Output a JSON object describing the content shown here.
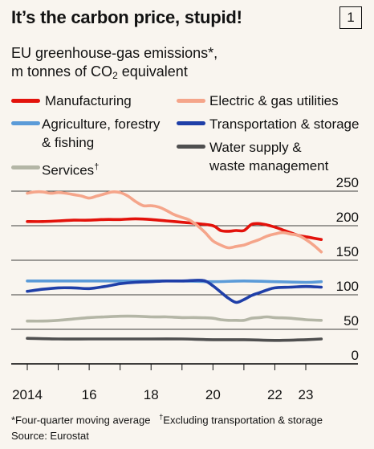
{
  "header": {
    "title": "It’s the carbon price, stupid!",
    "badge": "1",
    "subtitle_line1": "EU greenhouse-gas emissions*,",
    "subtitle_line2_pre": "m tonnes of CO",
    "subtitle_line2_sub": "2",
    "subtitle_line2_post": " equivalent"
  },
  "legend": {
    "manufacturing": "Manufacturing",
    "utilities": "Electric & gas utilities",
    "agriculture_1": "Agriculture, forestry",
    "agriculture_2": "& fishing",
    "transport": "Transportation & storage",
    "services": "Services",
    "services_mark": "†",
    "water_1": "Water supply &",
    "water_2": "waste management"
  },
  "footnotes": {
    "note1": "*Four-quarter moving average",
    "note2_mark": "†",
    "note2": "Excluding transportation & storage",
    "source": "Source: Eurostat"
  },
  "colors": {
    "manufacturing": "#e3120b",
    "utilities": "#f5a58a",
    "agriculture": "#5b9bd8",
    "transport": "#1f3fa8",
    "services": "#b4b6a6",
    "water": "#4f4f4f",
    "grid": "#000000"
  },
  "chart_data": {
    "type": "line",
    "x_ticks": [
      {
        "value": 2014,
        "label": "2014"
      },
      {
        "value": 2016,
        "label": "16"
      },
      {
        "value": 2018,
        "label": "18"
      },
      {
        "value": 2020,
        "label": "20"
      },
      {
        "value": 2022,
        "label": "22"
      },
      {
        "value": 2023,
        "label": "23"
      }
    ],
    "y_ticks": [
      0,
      50,
      100,
      150,
      200,
      250
    ],
    "xlim": [
      2013.9,
      2023.6
    ],
    "ylim": [
      0,
      250
    ],
    "grid": true,
    "series": [
      {
        "name": "Manufacturing",
        "color_key": "manufacturing",
        "x": [
          2014.0,
          2014.5,
          2015.0,
          2015.5,
          2016.0,
          2016.5,
          2017.0,
          2017.5,
          2018.0,
          2018.5,
          2019.0,
          2019.5,
          2020.0,
          2020.25,
          2020.5,
          2020.75,
          2021.0,
          2021.25,
          2021.5,
          2021.75,
          2022.0,
          2022.25,
          2022.5,
          2022.75,
          2023.0,
          2023.25,
          2023.5
        ],
        "y": [
          206,
          206,
          207,
          208,
          208,
          209,
          209,
          210,
          209,
          207,
          205,
          203,
          200,
          193,
          192,
          193,
          193,
          202,
          203,
          201,
          198,
          194,
          190,
          186,
          184,
          182,
          180
        ]
      },
      {
        "name": "Electric & gas utilities",
        "color_key": "utilities",
        "x": [
          2014.0,
          2014.25,
          2014.5,
          2014.75,
          2015.0,
          2015.25,
          2015.5,
          2015.75,
          2016.0,
          2016.25,
          2016.5,
          2016.75,
          2017.0,
          2017.25,
          2017.5,
          2017.75,
          2018.0,
          2018.25,
          2018.5,
          2018.75,
          2019.0,
          2019.25,
          2019.5,
          2019.75,
          2020.0,
          2020.25,
          2020.5,
          2020.75,
          2021.0,
          2021.25,
          2021.5,
          2021.75,
          2022.0,
          2022.25,
          2022.5,
          2022.75,
          2023.0,
          2023.25,
          2023.5
        ],
        "y": [
          247,
          249,
          249,
          247,
          248,
          247,
          245,
          243,
          240,
          243,
          246,
          249,
          248,
          243,
          235,
          229,
          229,
          227,
          222,
          216,
          212,
          208,
          200,
          190,
          178,
          172,
          168,
          170,
          172,
          176,
          180,
          185,
          188,
          190,
          188,
          186,
          180,
          172,
          162
        ]
      },
      {
        "name": "Agriculture, forestry & fishing",
        "color_key": "agriculture",
        "x": [
          2014.0,
          2015.0,
          2016.0,
          2017.0,
          2018.0,
          2019.0,
          2020.0,
          2021.0,
          2022.0,
          2023.0,
          2023.5
        ],
        "y": [
          120,
          120,
          120,
          120,
          120,
          120,
          119,
          120,
          119,
          118,
          119
        ]
      },
      {
        "name": "Transportation & storage",
        "color_key": "transport",
        "x": [
          2014.0,
          2014.5,
          2015.0,
          2015.5,
          2016.0,
          2016.5,
          2017.0,
          2017.5,
          2018.0,
          2018.5,
          2019.0,
          2019.5,
          2019.75,
          2020.0,
          2020.25,
          2020.5,
          2020.75,
          2021.0,
          2021.25,
          2021.5,
          2021.75,
          2022.0,
          2022.5,
          2023.0,
          2023.5
        ],
        "y": [
          105,
          108,
          110,
          110,
          109,
          112,
          116,
          118,
          119,
          120,
          120,
          121,
          120,
          113,
          104,
          95,
          89,
          93,
          99,
          103,
          107,
          110,
          111,
          112,
          111
        ]
      },
      {
        "name": "Services",
        "color_key": "services",
        "x": [
          2014.0,
          2014.5,
          2015.0,
          2015.5,
          2016.0,
          2016.5,
          2017.0,
          2017.5,
          2018.0,
          2018.5,
          2019.0,
          2019.5,
          2020.0,
          2020.25,
          2020.5,
          2020.75,
          2021.0,
          2021.25,
          2021.5,
          2021.75,
          2022.0,
          2022.5,
          2023.0,
          2023.5
        ],
        "y": [
          62,
          62,
          63,
          65,
          67,
          68,
          69,
          69,
          68,
          68,
          67,
          67,
          66,
          64,
          63,
          63,
          63,
          66,
          67,
          68,
          67,
          66,
          64,
          63
        ]
      },
      {
        "name": "Water supply & waste management",
        "color_key": "water",
        "x": [
          2014.0,
          2015.0,
          2016.0,
          2017.0,
          2018.0,
          2019.0,
          2020.0,
          2021.0,
          2022.0,
          2023.0,
          2023.5
        ],
        "y": [
          37,
          36,
          36,
          36,
          36,
          36,
          35,
          35,
          34,
          35,
          36
        ]
      }
    ]
  }
}
